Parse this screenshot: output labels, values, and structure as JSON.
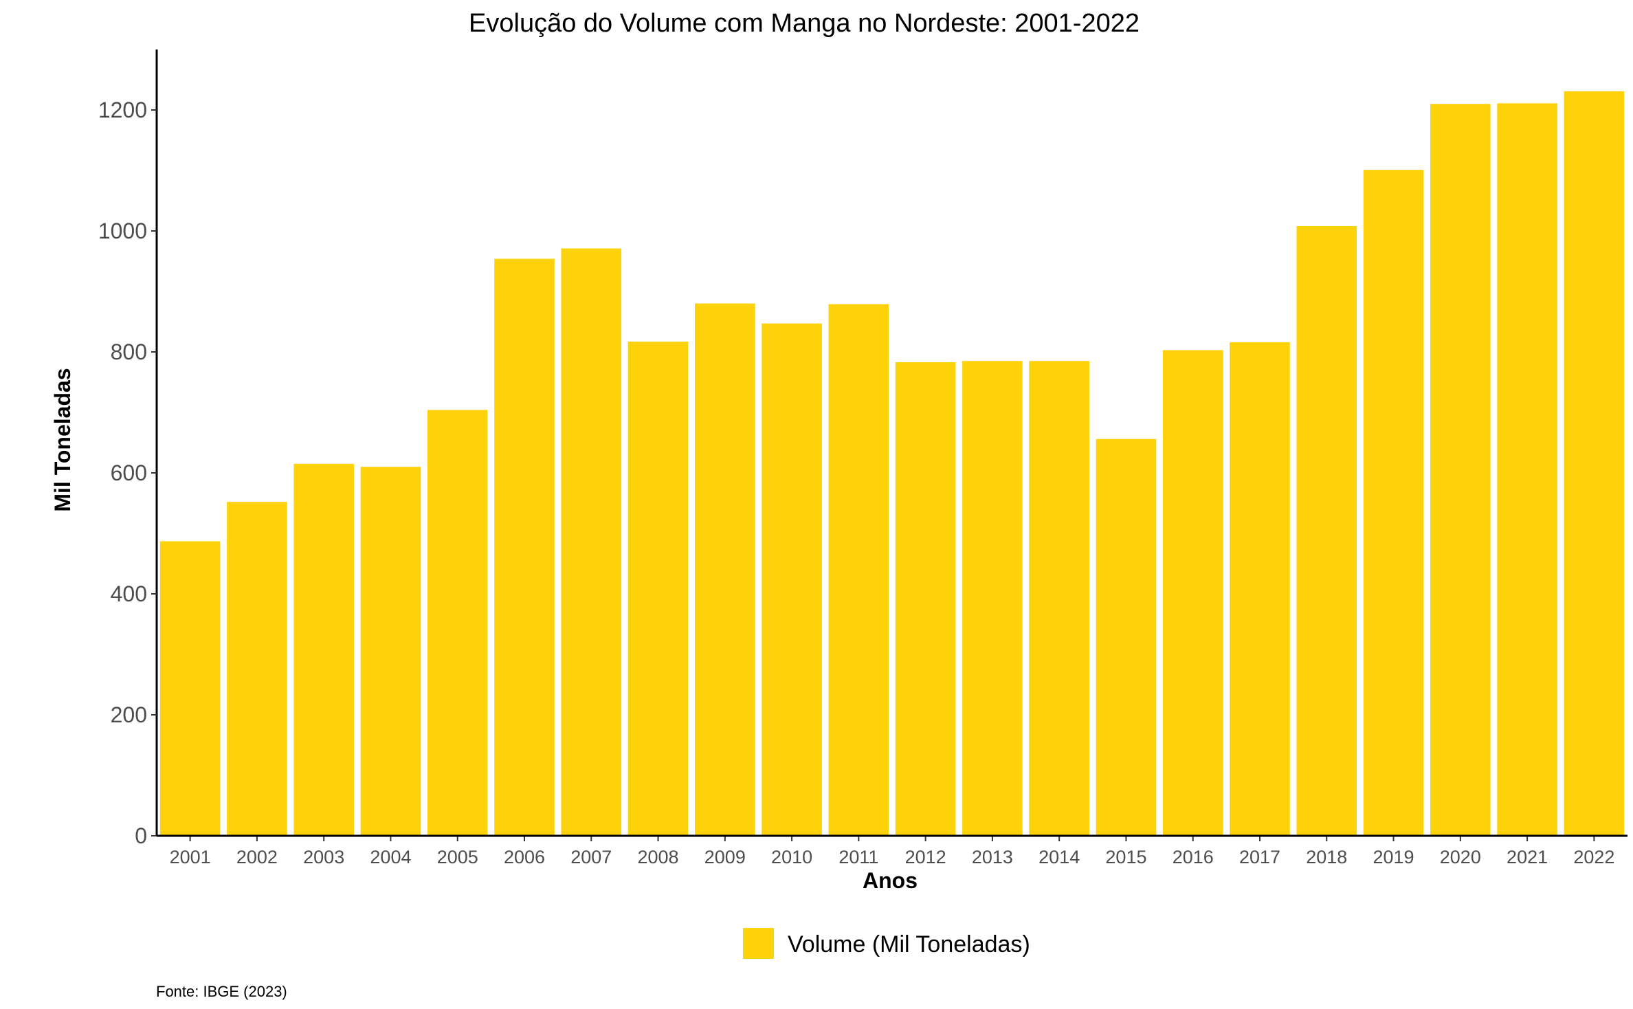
{
  "chart_data": {
    "type": "bar",
    "title": "Evolução do Volume com Manga no Nordeste: 2001-2022",
    "xlabel": "Anos",
    "ylabel": "Mil Toneladas",
    "categories": [
      "2001",
      "2002",
      "2003",
      "2004",
      "2005",
      "2006",
      "2007",
      "2008",
      "2009",
      "2010",
      "2011",
      "2012",
      "2013",
      "2014",
      "2015",
      "2016",
      "2017",
      "2018",
      "2019",
      "2020",
      "2021",
      "2022"
    ],
    "series": [
      {
        "name": "Volume (Mil Toneladas)",
        "color": "#FDD20A",
        "values": [
          487,
          552,
          615,
          610,
          704,
          954,
          971,
          817,
          880,
          847,
          879,
          783,
          785,
          785,
          656,
          803,
          816,
          1008,
          1101,
          1210,
          1211,
          1231
        ]
      }
    ],
    "ylim": [
      0,
      1300
    ],
    "yticks": [
      0,
      200,
      400,
      600,
      800,
      1000,
      1200
    ],
    "grid": false,
    "legend_position": "bottom",
    "caption": "Fonte: IBGE (2023)"
  }
}
